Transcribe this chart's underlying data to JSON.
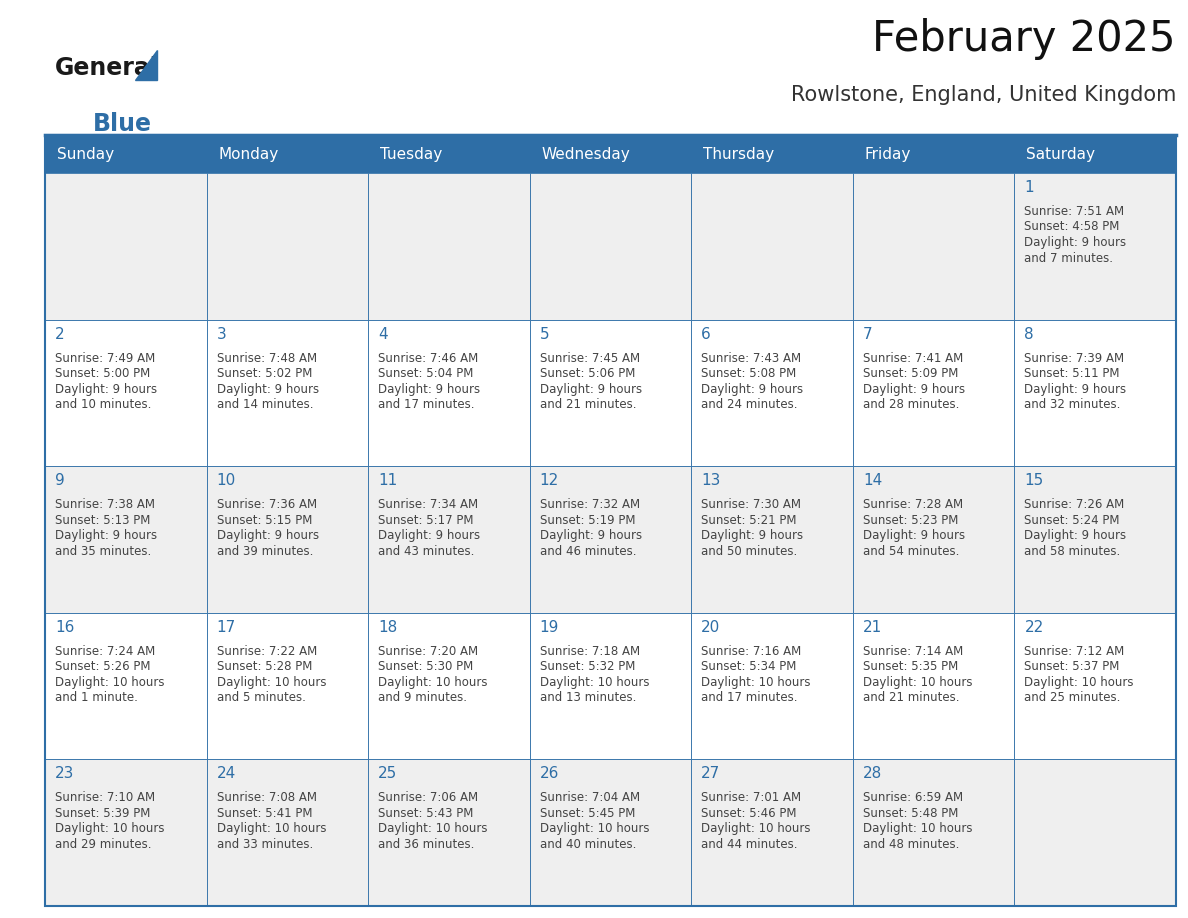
{
  "title": "February 2025",
  "subtitle": "Rowlstone, England, United Kingdom",
  "header_bg": "#2E6EA6",
  "header_text_color": "#FFFFFF",
  "cell_bg_odd": "#EFEFEF",
  "cell_bg_even": "#FFFFFF",
  "day_number_color": "#2E6EA6",
  "info_text_color": "#444444",
  "border_color": "#2E6EA6",
  "days_of_week": [
    "Sunday",
    "Monday",
    "Tuesday",
    "Wednesday",
    "Thursday",
    "Friday",
    "Saturday"
  ],
  "weeks": [
    [
      null,
      null,
      null,
      null,
      null,
      null,
      1
    ],
    [
      2,
      3,
      4,
      5,
      6,
      7,
      8
    ],
    [
      9,
      10,
      11,
      12,
      13,
      14,
      15
    ],
    [
      16,
      17,
      18,
      19,
      20,
      21,
      22
    ],
    [
      23,
      24,
      25,
      26,
      27,
      28,
      null
    ]
  ],
  "cell_data": {
    "1": {
      "sunrise": "7:51 AM",
      "sunset": "4:58 PM",
      "daylight": "9 hours",
      "daylight2": "and 7 minutes."
    },
    "2": {
      "sunrise": "7:49 AM",
      "sunset": "5:00 PM",
      "daylight": "9 hours",
      "daylight2": "and 10 minutes."
    },
    "3": {
      "sunrise": "7:48 AM",
      "sunset": "5:02 PM",
      "daylight": "9 hours",
      "daylight2": "and 14 minutes."
    },
    "4": {
      "sunrise": "7:46 AM",
      "sunset": "5:04 PM",
      "daylight": "9 hours",
      "daylight2": "and 17 minutes."
    },
    "5": {
      "sunrise": "7:45 AM",
      "sunset": "5:06 PM",
      "daylight": "9 hours",
      "daylight2": "and 21 minutes."
    },
    "6": {
      "sunrise": "7:43 AM",
      "sunset": "5:08 PM",
      "daylight": "9 hours",
      "daylight2": "and 24 minutes."
    },
    "7": {
      "sunrise": "7:41 AM",
      "sunset": "5:09 PM",
      "daylight": "9 hours",
      "daylight2": "and 28 minutes."
    },
    "8": {
      "sunrise": "7:39 AM",
      "sunset": "5:11 PM",
      "daylight": "9 hours",
      "daylight2": "and 32 minutes."
    },
    "9": {
      "sunrise": "7:38 AM",
      "sunset": "5:13 PM",
      "daylight": "9 hours",
      "daylight2": "and 35 minutes."
    },
    "10": {
      "sunrise": "7:36 AM",
      "sunset": "5:15 PM",
      "daylight": "9 hours",
      "daylight2": "and 39 minutes."
    },
    "11": {
      "sunrise": "7:34 AM",
      "sunset": "5:17 PM",
      "daylight": "9 hours",
      "daylight2": "and 43 minutes."
    },
    "12": {
      "sunrise": "7:32 AM",
      "sunset": "5:19 PM",
      "daylight": "9 hours",
      "daylight2": "and 46 minutes."
    },
    "13": {
      "sunrise": "7:30 AM",
      "sunset": "5:21 PM",
      "daylight": "9 hours",
      "daylight2": "and 50 minutes."
    },
    "14": {
      "sunrise": "7:28 AM",
      "sunset": "5:23 PM",
      "daylight": "9 hours",
      "daylight2": "and 54 minutes."
    },
    "15": {
      "sunrise": "7:26 AM",
      "sunset": "5:24 PM",
      "daylight": "9 hours",
      "daylight2": "and 58 minutes."
    },
    "16": {
      "sunrise": "7:24 AM",
      "sunset": "5:26 PM",
      "daylight": "10 hours",
      "daylight2": "and 1 minute."
    },
    "17": {
      "sunrise": "7:22 AM",
      "sunset": "5:28 PM",
      "daylight": "10 hours",
      "daylight2": "and 5 minutes."
    },
    "18": {
      "sunrise": "7:20 AM",
      "sunset": "5:30 PM",
      "daylight": "10 hours",
      "daylight2": "and 9 minutes."
    },
    "19": {
      "sunrise": "7:18 AM",
      "sunset": "5:32 PM",
      "daylight": "10 hours",
      "daylight2": "and 13 minutes."
    },
    "20": {
      "sunrise": "7:16 AM",
      "sunset": "5:34 PM",
      "daylight": "10 hours",
      "daylight2": "and 17 minutes."
    },
    "21": {
      "sunrise": "7:14 AM",
      "sunset": "5:35 PM",
      "daylight": "10 hours",
      "daylight2": "and 21 minutes."
    },
    "22": {
      "sunrise": "7:12 AM",
      "sunset": "5:37 PM",
      "daylight": "10 hours",
      "daylight2": "and 25 minutes."
    },
    "23": {
      "sunrise": "7:10 AM",
      "sunset": "5:39 PM",
      "daylight": "10 hours",
      "daylight2": "and 29 minutes."
    },
    "24": {
      "sunrise": "7:08 AM",
      "sunset": "5:41 PM",
      "daylight": "10 hours",
      "daylight2": "and 33 minutes."
    },
    "25": {
      "sunrise": "7:06 AM",
      "sunset": "5:43 PM",
      "daylight": "10 hours",
      "daylight2": "and 36 minutes."
    },
    "26": {
      "sunrise": "7:04 AM",
      "sunset": "5:45 PM",
      "daylight": "10 hours",
      "daylight2": "and 40 minutes."
    },
    "27": {
      "sunrise": "7:01 AM",
      "sunset": "5:46 PM",
      "daylight": "10 hours",
      "daylight2": "and 44 minutes."
    },
    "28": {
      "sunrise": "6:59 AM",
      "sunset": "5:48 PM",
      "daylight": "10 hours",
      "daylight2": "and 48 minutes."
    }
  },
  "logo_general_color": "#1a1a1a",
  "logo_blue_color": "#2E6EA6",
  "title_fontsize": 30,
  "subtitle_fontsize": 15,
  "header_fontsize": 11,
  "day_num_fontsize": 11,
  "info_fontsize": 8.5
}
